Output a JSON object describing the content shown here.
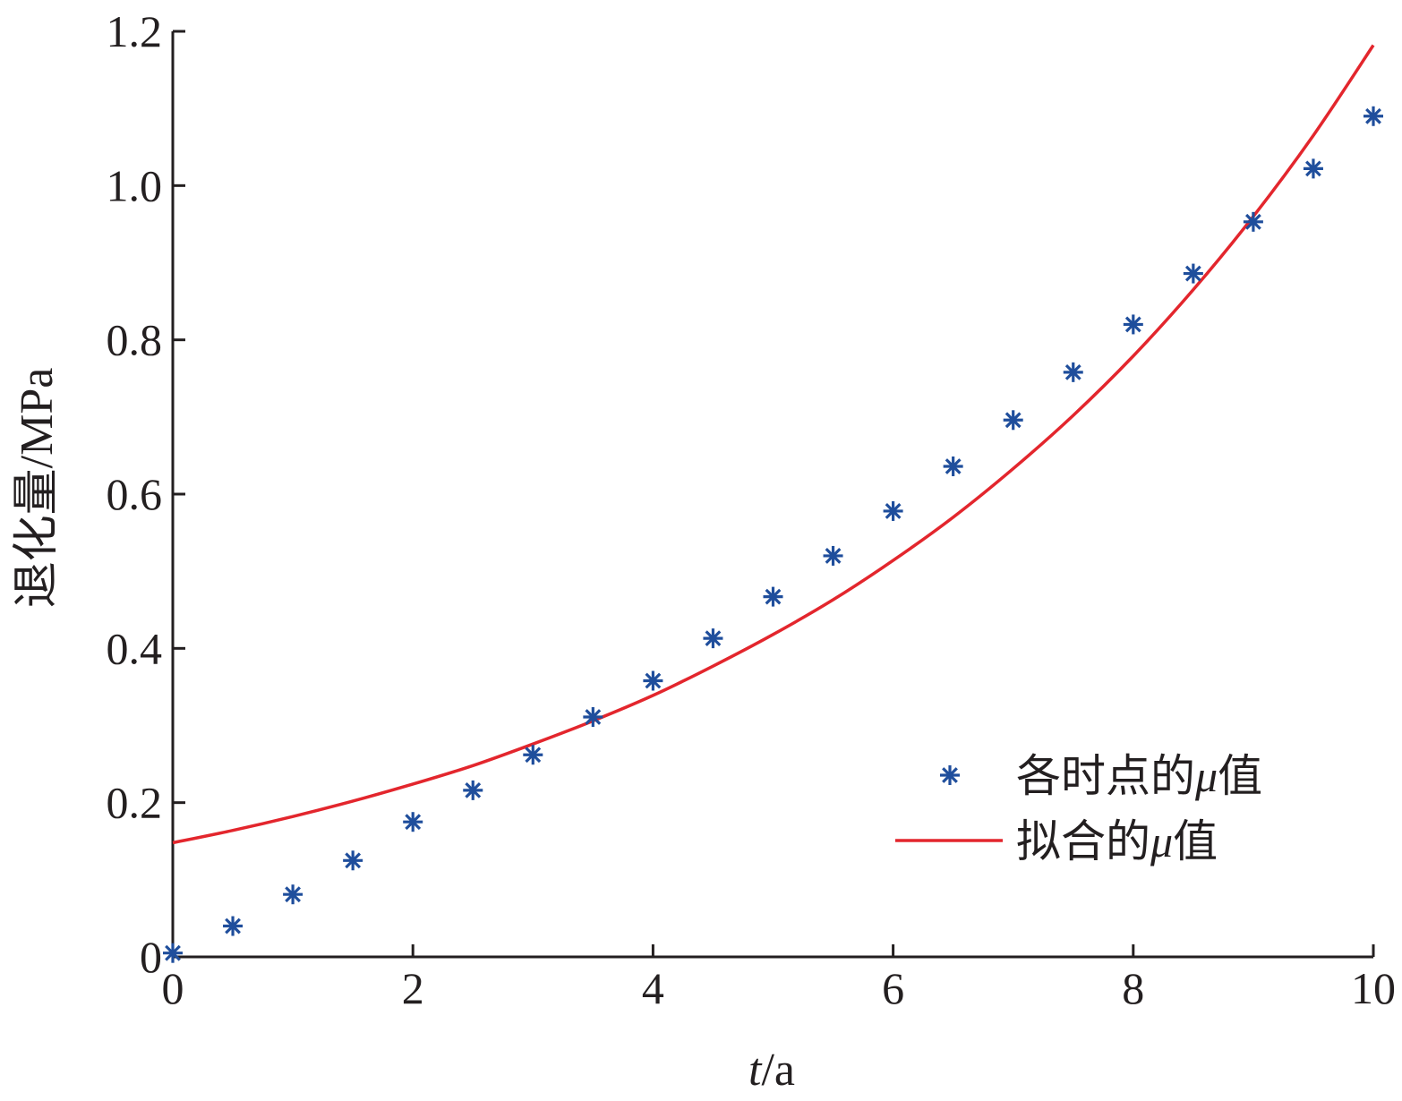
{
  "chart_data": {
    "type": "scatter",
    "xlabel_var": "t",
    "xlabel_unit": "/a",
    "ylabel": "退化量/MPa",
    "xlim": [
      0,
      10
    ],
    "ylim": [
      0,
      1.2
    ],
    "x_ticks": [
      "0",
      "2",
      "4",
      "6",
      "8",
      "10"
    ],
    "y_ticks": [
      "0",
      "0.2",
      "0.4",
      "0.6",
      "0.8",
      "1.0",
      "1.2"
    ],
    "grid": false,
    "legend_position": "bottom-right",
    "colors": {
      "points": "#1f4e9c",
      "fit": "#e3262d",
      "axes": "#231f20"
    },
    "series": [
      {
        "name": "各时点的μ值",
        "name_prefix": "各时点的",
        "name_var": "μ",
        "name_suffix": "值",
        "type": "scatter",
        "marker": "asterisk",
        "x": [
          0,
          0.5,
          1,
          1.5,
          2,
          2.5,
          3,
          3.5,
          4,
          4.5,
          5,
          5.5,
          6,
          6.5,
          7,
          7.5,
          8,
          8.5,
          9,
          9.5,
          10
        ],
        "y": [
          0.005,
          0.04,
          0.081,
          0.125,
          0.175,
          0.216,
          0.262,
          0.311,
          0.358,
          0.413,
          0.467,
          0.52,
          0.578,
          0.636,
          0.696,
          0.758,
          0.82,
          0.886,
          0.953,
          1.022,
          1.09
        ]
      },
      {
        "name": "拟合的μ值",
        "name_prefix": "拟合的",
        "name_var": "μ",
        "name_suffix": "值",
        "type": "line",
        "x": [
          0,
          0.5,
          1,
          1.5,
          2,
          2.5,
          3,
          3.5,
          4,
          4.5,
          5,
          5.5,
          6,
          6.5,
          7,
          7.5,
          8,
          8.5,
          9,
          9.5,
          10
        ],
        "y": [
          0.148,
          0.164,
          0.182,
          0.202,
          0.224,
          0.248,
          0.276,
          0.306,
          0.339,
          0.377,
          0.418,
          0.463,
          0.514,
          0.57,
          0.633,
          0.702,
          0.779,
          0.865,
          0.96,
          1.065,
          1.182
        ]
      }
    ]
  }
}
